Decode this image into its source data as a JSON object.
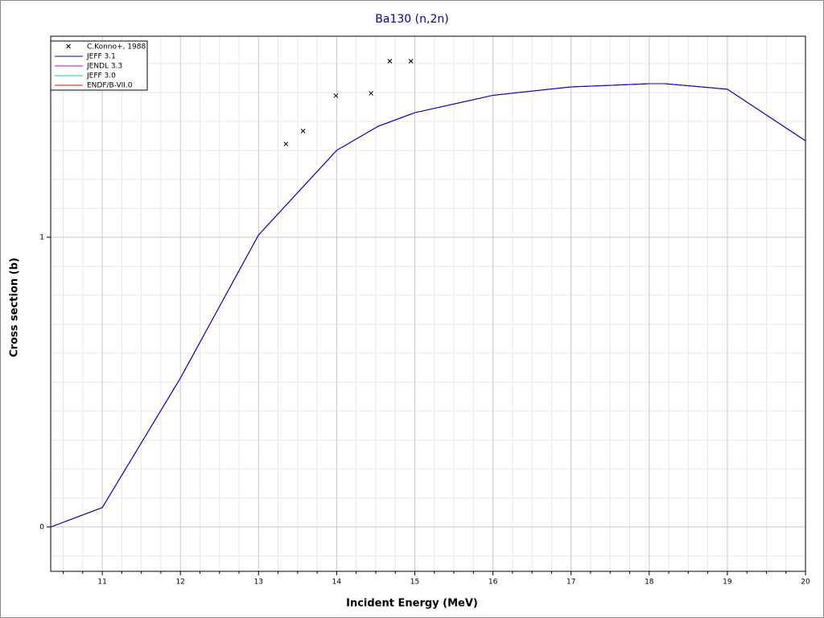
{
  "chart_data": {
    "type": "line",
    "title": "Ba130 (n,2n)",
    "xlabel": "Incident Energy (MeV)",
    "ylabel": "Cross section (b)",
    "xlim": [
      10.34,
      20
    ],
    "ylim": [
      -0.153,
      1.694
    ],
    "xticks": [
      11,
      12,
      13,
      14,
      15,
      16,
      17,
      18,
      19,
      20
    ],
    "yticks": [
      0,
      1
    ],
    "xminor": [
      10.5,
      10.75,
      11.25,
      11.5,
      11.75,
      12.25,
      12.5,
      12.75,
      13.25,
      13.5,
      13.75,
      14.25,
      14.5,
      14.75,
      15.25,
      15.5,
      15.75,
      16.25,
      16.5,
      16.75,
      17.25,
      17.5,
      17.75,
      18.25,
      18.5,
      18.75,
      19.25,
      19.5,
      19.75
    ],
    "yminor": [
      -0.1,
      0.1,
      0.2,
      0.3,
      0.4,
      0.5,
      0.6,
      0.7,
      0.8,
      0.9,
      1.1,
      1.2,
      1.3,
      1.4,
      1.5,
      1.6
    ],
    "grid": true,
    "legend": "upper left",
    "scatter": {
      "name": "C.Konno+, 1988",
      "color": "#000000",
      "x": [
        13.35,
        13.57,
        13.99,
        14.44,
        14.68,
        14.95
      ],
      "values": [
        1.322,
        1.367,
        1.489,
        1.497,
        1.608,
        1.608
      ]
    },
    "x": [
      10.34,
      11,
      12,
      13,
      14,
      14.53,
      15,
      16,
      17,
      18,
      18.2,
      19,
      20
    ],
    "series": [
      {
        "name": "JEFF 3.1",
        "color": "#0000cc",
        "values": [
          0,
          0.067,
          0.514,
          1.008,
          1.3,
          1.383,
          1.43,
          1.49,
          1.519,
          1.53,
          1.53,
          1.511,
          1.333
        ]
      },
      {
        "name": "JENDL 3.3",
        "color": "#cc00cc",
        "values": [
          0,
          0.067,
          0.514,
          1.008,
          1.3,
          1.383,
          1.43,
          1.49,
          1.519,
          1.53,
          1.53,
          1.511,
          1.333
        ]
      },
      {
        "name": "JEFF 3.0",
        "color": "#00cccc",
        "values": [
          0,
          0.067,
          0.514,
          1.008,
          1.3,
          1.383,
          1.43,
          1.49,
          1.519,
          1.53,
          1.53,
          1.511,
          1.333
        ]
      },
      {
        "name": "ENDF/B-VII.0",
        "color": "#ff0000",
        "values": [
          0,
          0.067,
          0.514,
          1.008,
          1.3,
          1.383,
          1.43,
          1.49,
          1.519,
          1.53,
          1.53,
          1.511,
          1.333
        ]
      }
    ]
  }
}
